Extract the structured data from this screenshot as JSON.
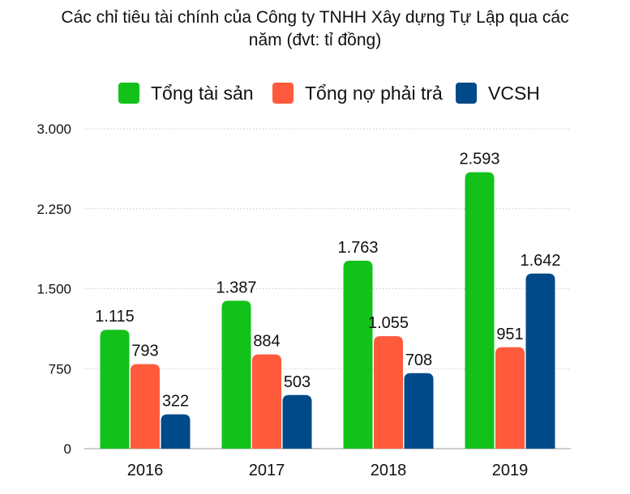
{
  "chart_data": {
    "type": "bar",
    "title_lines": [
      "Các chỉ tiêu tài chính của Công ty TNHH Xây dựng Tự Lập qua các",
      "năm (đvt: tỉ đồng)"
    ],
    "categories": [
      "2016",
      "2017",
      "2018",
      "2019"
    ],
    "series": [
      {
        "name": "Tổng tài sản",
        "color": "#12c21a",
        "values": [
          1115,
          1387,
          1763,
          2593
        ],
        "labels": [
          "1.115",
          "1.387",
          "1.763",
          "2.593"
        ]
      },
      {
        "name": "Tổng nợ phải trả",
        "color": "#ff5a3c",
        "values": [
          793,
          884,
          1055,
          951
        ],
        "labels": [
          "793",
          "884",
          "1.055",
          "951"
        ]
      },
      {
        "name": "VCSH",
        "color": "#004a8a",
        "values": [
          322,
          503,
          708,
          1642
        ],
        "labels": [
          "322",
          "503",
          "708",
          "1.642"
        ]
      }
    ],
    "y_ticks": [
      0,
      750,
      1500,
      2250,
      3000
    ],
    "y_tick_labels": [
      "0",
      "750",
      "1.500",
      "2.250",
      "3.000"
    ],
    "ylim": [
      0,
      3000
    ],
    "grid": true,
    "legend_position": "top"
  }
}
